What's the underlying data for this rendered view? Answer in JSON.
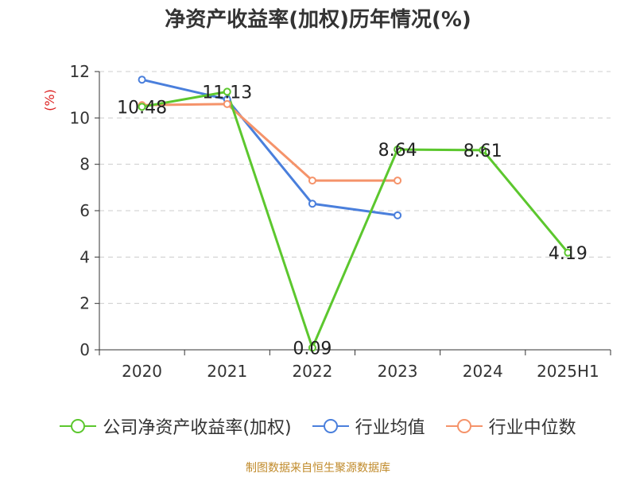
{
  "chart_data": {
    "type": "line",
    "title": "净资产收益率(加权)历年情况(%)",
    "ylabel": "(%)",
    "categories": [
      "2020",
      "2021",
      "2022",
      "2023",
      "2024",
      "2025H1"
    ],
    "ylim": [
      0,
      12
    ],
    "yticks": [
      0,
      2,
      4,
      6,
      8,
      10,
      12
    ],
    "grid": true,
    "legend_position": "bottom",
    "series": [
      {
        "name": "公司净资产收益率(加权)",
        "color": "#5cc72e",
        "values": [
          10.48,
          11.13,
          0.09,
          8.64,
          8.61,
          4.19
        ],
        "labels": [
          "10.48",
          "11.13",
          "0.09",
          "8.64",
          "8.61",
          "4.19"
        ]
      },
      {
        "name": "行业均值",
        "color": "#4a7fdc",
        "values": [
          11.65,
          10.8,
          6.3,
          5.8,
          null,
          null
        ]
      },
      {
        "name": "行业中位数",
        "color": "#f5936a",
        "values": [
          10.55,
          10.6,
          7.3,
          7.3,
          null,
          null
        ]
      }
    ],
    "source": "制图数据来自恒生聚源数据库"
  }
}
